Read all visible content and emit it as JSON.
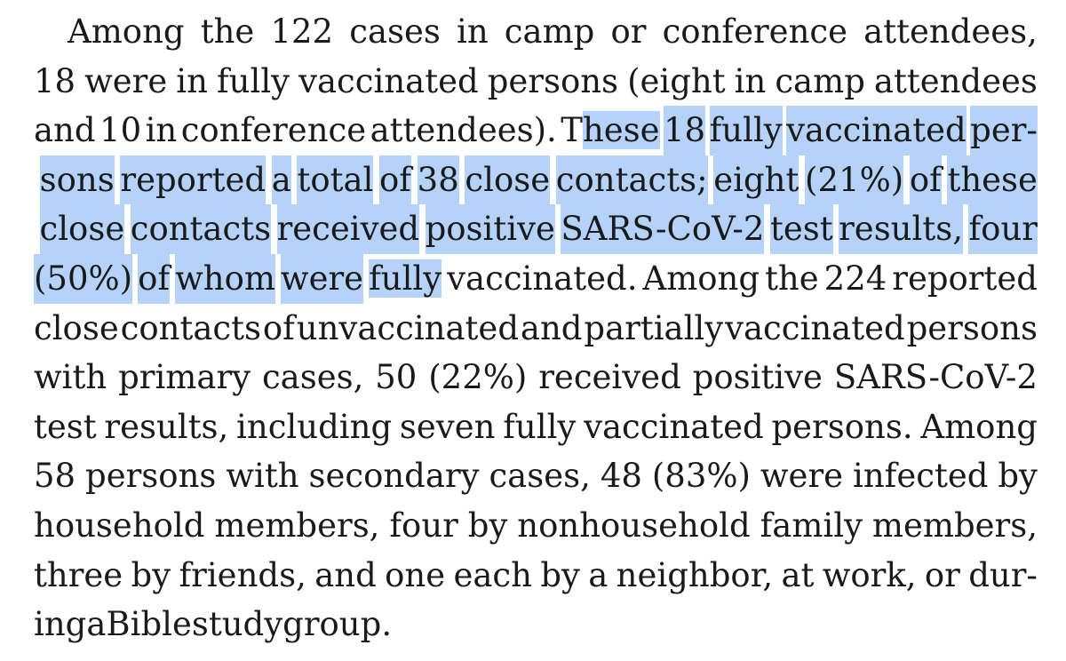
{
  "paragraph": {
    "lines": [
      "Among the 122 cases in camp or conference attendees,",
      "18 were in fully vaccinated persons (eight in camp attendees",
      "and 10 in conference attendees). These 18 fully vaccinated per-",
      "sons reported a total of 38 close contacts; eight (21%) of these",
      "close contacts received positive SARS-CoV-2 test results, four",
      "(50%) of whom were fully vaccinated. Among the 224 reported",
      "close contacts of unvaccinated and partially vaccinated persons",
      "with primary cases, 50 (22%) received positive SARS-CoV-2",
      "test results, including seven fully vaccinated persons. Among",
      "58 persons with secondary cases, 48 (83%) were infected by",
      "household members, four by nonhousehold family members,",
      "three by friends, and one each by a neighbor, at work, or dur-",
      "ing a Bible study group."
    ],
    "highlighted_text": "These 18 fully vaccinated persons reported a total of 38 close contacts; eight (21%) of these close contacts received positive SARS-CoV-2 test results, four (50%) of whom were fully vaccinated",
    "highlight_color": "#b5d3f9",
    "text_color": "#1a1a1a",
    "background_color": "#ffffff"
  }
}
